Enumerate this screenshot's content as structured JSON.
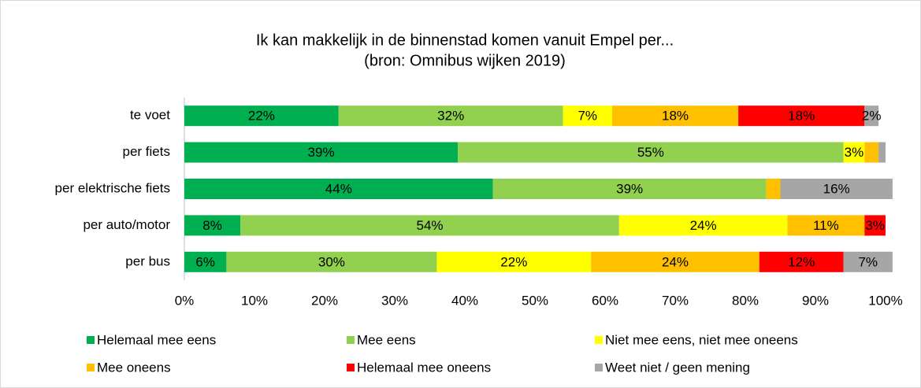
{
  "chart_data": {
    "type": "stacked-barh",
    "title": "Ik kan makkelijk in de binnenstad komen vanuit Empel per...",
    "subtitle": "(bron: Omnibus wijken 2019)",
    "categories": [
      "te voet",
      "per fiets",
      "per elektrische fiets",
      "per auto/motor",
      "per bus"
    ],
    "series": [
      {
        "name": "Helemaal mee eens",
        "color": "#00b050",
        "values": [
          22,
          39,
          44,
          8,
          6
        ],
        "value_labels": [
          "22%",
          "39%",
          "44%",
          "8%",
          "6%"
        ]
      },
      {
        "name": "Mee eens",
        "color": "#92d050",
        "values": [
          32,
          55,
          39,
          54,
          30
        ],
        "value_labels": [
          "32%",
          "55%",
          "39%",
          "54%",
          "30%"
        ]
      },
      {
        "name": "Niet mee eens, niet mee oneens",
        "color": "#ffff00",
        "values": [
          7,
          3,
          0,
          24,
          22
        ],
        "value_labels": [
          "7%",
          "3%",
          null,
          "24%",
          "22%"
        ]
      },
      {
        "name": "Mee oneens",
        "color": "#ffc000",
        "values": [
          18,
          2,
          2,
          11,
          24
        ],
        "value_labels": [
          "18%",
          null,
          null,
          "11%",
          "24%"
        ]
      },
      {
        "name": "Helemaal mee oneens",
        "color": "#ff0000",
        "values": [
          18,
          0,
          0,
          3,
          12
        ],
        "value_labels": [
          "18%",
          null,
          null,
          "3%",
          "12%"
        ]
      },
      {
        "name": "Weet niet / geen mening",
        "color": "#a6a6a6",
        "values": [
          2,
          1,
          16,
          0,
          7
        ],
        "value_labels": [
          "2%",
          null,
          "16%",
          null,
          "7%"
        ]
      }
    ],
    "xlim": [
      0,
      100
    ],
    "xticks": [
      {
        "value": 0,
        "label": "0%"
      },
      {
        "value": 10,
        "label": "10%"
      },
      {
        "value": 20,
        "label": "20%"
      },
      {
        "value": 30,
        "label": "30%"
      },
      {
        "value": 40,
        "label": "40%"
      },
      {
        "value": 50,
        "label": "50%"
      },
      {
        "value": 60,
        "label": "60%"
      },
      {
        "value": 70,
        "label": "70%"
      },
      {
        "value": 80,
        "label": "80%"
      },
      {
        "value": 90,
        "label": "90%"
      },
      {
        "value": 100,
        "label": "100%"
      }
    ]
  }
}
